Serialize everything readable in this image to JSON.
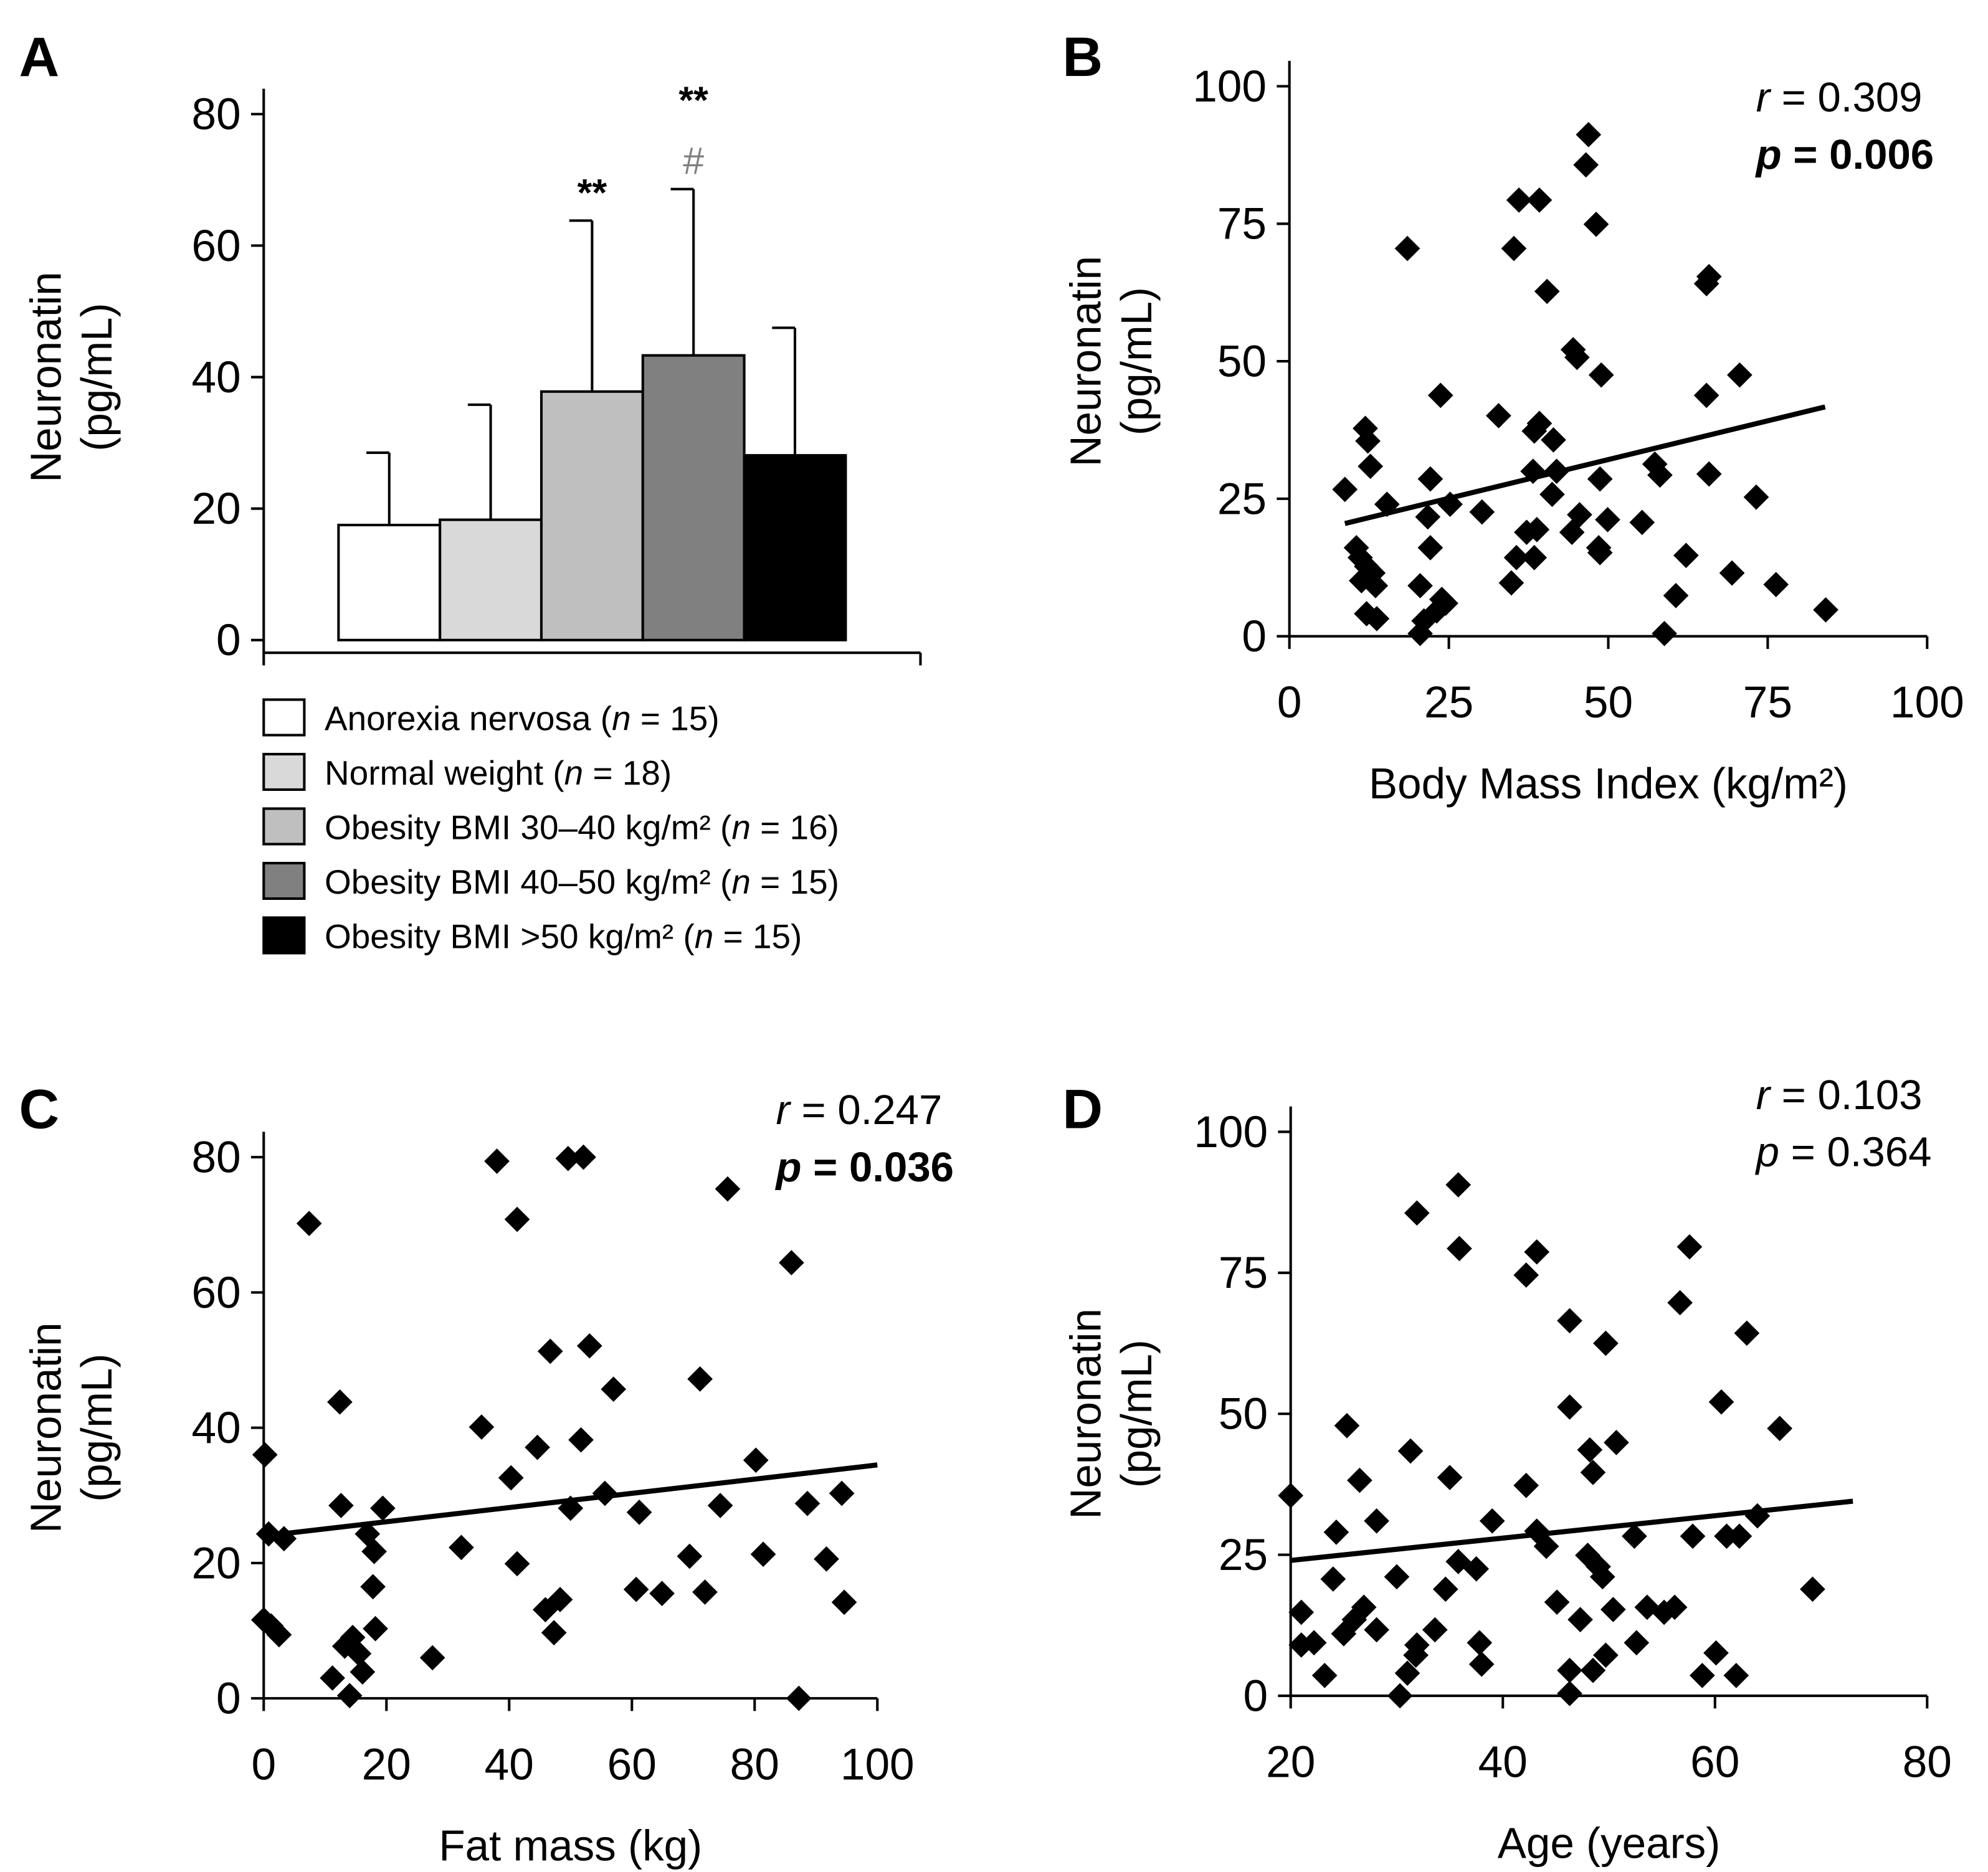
{
  "chart_data": [
    {
      "panel": "A",
      "type": "bar",
      "ylabel": [
        "Neuronatin",
        "(pg/mL)"
      ],
      "ylim": [
        0,
        80
      ],
      "yticks": [
        0,
        20,
        40,
        60,
        80
      ],
      "categories": [
        "Anorexia nervosa",
        "Normal weight",
        "Obesity BMI 30–40 kg/m²",
        "Obesity BMI 40–50 kg/m²",
        "Obesity BMI >50 kg/m²"
      ],
      "legend": [
        {
          "label": "Anorexia nervosa (",
          "n": "n",
          "rest": " = 15)"
        },
        {
          "label": "Normal weight (",
          "n": "n",
          "rest": " = 18)"
        },
        {
          "label": "Obesity BMI 30–40 kg/m² (",
          "n": "n",
          "rest": " = 16)"
        },
        {
          "label": "Obesity BMI 40–50 kg/m² (",
          "n": "n",
          "rest": " = 15)"
        },
        {
          "label": "Obesity BMI >50 kg/m² (",
          "n": "n",
          "rest": " = 15)"
        }
      ],
      "values": [
        17.5,
        18.3,
        37.8,
        43.3,
        28.1
      ],
      "error_upper": [
        28.5,
        35.8,
        63.8,
        68.6,
        47.5
      ],
      "colors": [
        "#ffffff",
        "#d9d9d9",
        "#bfbfbf",
        "#808080",
        "#000000"
      ],
      "annotations": [
        {
          "bar": 2,
          "lines": [
            {
              "text": "**",
              "color": "#000000"
            }
          ]
        },
        {
          "bar": 3,
          "lines": [
            {
              "text": "**",
              "color": "#000000"
            },
            {
              "text": "#",
              "color": "#7f7f7f"
            }
          ]
        }
      ]
    },
    {
      "panel": "B",
      "type": "scatter",
      "xlabel": "Body Mass Index (kg/m²)",
      "ylabel": [
        "Neuronatin",
        "(pg/mL)"
      ],
      "xlim": [
        0,
        100
      ],
      "ylim": [
        0,
        100
      ],
      "xticks": [
        0,
        25,
        50,
        75,
        100
      ],
      "yticks": [
        0,
        25,
        50,
        75,
        100
      ],
      "stats": {
        "r_label": "r",
        "r_value": " = 0.309",
        "p_label": "p",
        "p_value": " = 0.006",
        "p_bold": true
      },
      "trendline": [
        [
          8.7,
          20.5
        ],
        [
          84,
          41.7
        ]
      ],
      "points": [
        [
          8.7,
          26.7
        ],
        [
          11.9,
          37.8
        ],
        [
          12.3,
          35.5
        ],
        [
          12.7,
          30.9
        ],
        [
          10.5,
          16.1
        ],
        [
          11.1,
          14.3
        ],
        [
          12.1,
          12.7
        ],
        [
          13.1,
          11.5
        ],
        [
          11.3,
          10.1
        ],
        [
          13.5,
          9.2
        ],
        [
          12.1,
          4.1
        ],
        [
          13.7,
          3.2
        ],
        [
          15.3,
          24.0
        ],
        [
          18.5,
          70.5
        ],
        [
          20.5,
          9.2
        ],
        [
          21.1,
          2.8
        ],
        [
          20.5,
          0.5
        ],
        [
          21.7,
          21.7
        ],
        [
          22.1,
          28.6
        ],
        [
          22.1,
          16.1
        ],
        [
          23.1,
          4.6
        ],
        [
          23.9,
          6.7
        ],
        [
          24.5,
          6.0
        ],
        [
          23.7,
          43.8
        ],
        [
          25.2,
          24.0
        ],
        [
          30.2,
          22.6
        ],
        [
          32.8,
          40.1
        ],
        [
          35.2,
          70.5
        ],
        [
          36.0,
          79.3
        ],
        [
          39.2,
          79.3
        ],
        [
          38.2,
          30.0
        ],
        [
          39.2,
          38.7
        ],
        [
          38.4,
          37.3
        ],
        [
          38.8,
          19.4
        ],
        [
          38.4,
          14.3
        ],
        [
          40.4,
          62.7
        ],
        [
          41.2,
          25.8
        ],
        [
          41.4,
          35.7
        ],
        [
          41.9,
          30.0
        ],
        [
          44.3,
          18.9
        ],
        [
          44.5,
          52.1
        ],
        [
          45.1,
          50.7
        ],
        [
          45.5,
          22.1
        ],
        [
          46.5,
          85.7
        ],
        [
          46.9,
          91.2
        ],
        [
          48.1,
          74.9
        ],
        [
          48.5,
          16.1
        ],
        [
          48.7,
          15.2
        ],
        [
          48.9,
          47.5
        ],
        [
          48.7,
          28.6
        ],
        [
          49.9,
          21.2
        ],
        [
          55.3,
          20.7
        ],
        [
          57.3,
          31.3
        ],
        [
          58.1,
          29.3
        ],
        [
          58.8,
          0.5
        ],
        [
          60.6,
          7.4
        ],
        [
          62.2,
          14.7
        ],
        [
          65.4,
          64.1
        ],
        [
          65.8,
          65.4
        ],
        [
          65.4,
          43.8
        ],
        [
          65.8,
          29.5
        ],
        [
          69.4,
          11.5
        ],
        [
          70.6,
          47.5
        ],
        [
          73.2,
          25.3
        ],
        [
          76.3,
          9.4
        ],
        [
          84.1,
          4.8
        ],
        [
          34.8,
          9.7
        ],
        [
          35.6,
          14.3
        ],
        [
          37.2,
          18.9
        ]
      ]
    },
    {
      "panel": "C",
      "type": "scatter",
      "xlabel": "Fat mass (kg)",
      "ylabel": [
        "Neuronatin",
        "(pg/mL)"
      ],
      "xlim": [
        0,
        100
      ],
      "ylim": [
        0,
        80
      ],
      "xticks": [
        0,
        20,
        40,
        60,
        80,
        100
      ],
      "yticks": [
        0,
        20,
        40,
        60,
        80
      ],
      "stats": {
        "r_label": "r",
        "r_value": " = 0.247",
        "p_label": "p",
        "p_value": " = 0.036",
        "p_bold": true
      },
      "trendline": [
        [
          0,
          24
        ],
        [
          100,
          34.5
        ]
      ],
      "points": [
        [
          0.2,
          36
        ],
        [
          0.8,
          24.3
        ],
        [
          0,
          11.6
        ],
        [
          1.2,
          10.7
        ],
        [
          2.5,
          9.4
        ],
        [
          3.3,
          23.6
        ],
        [
          7.4,
          70.2
        ],
        [
          11.2,
          3.0
        ],
        [
          12.4,
          43.8
        ],
        [
          12.6,
          28.5
        ],
        [
          13.2,
          7.7
        ],
        [
          14.5,
          9.0
        ],
        [
          14.0,
          0.4
        ],
        [
          15.5,
          6.6
        ],
        [
          16.1,
          3.9
        ],
        [
          16.9,
          24.3
        ],
        [
          18.0,
          21.7
        ],
        [
          17.8,
          16.5
        ],
        [
          18.2,
          10.3
        ],
        [
          19.4,
          28.1
        ],
        [
          27.5,
          6.0
        ],
        [
          32.2,
          22.3
        ],
        [
          35.5,
          40.1
        ],
        [
          38.0,
          79.4
        ],
        [
          40.3,
          32.6
        ],
        [
          41.3,
          70.8
        ],
        [
          41.3,
          19.9
        ],
        [
          44.6,
          37.1
        ],
        [
          45.9,
          13.1
        ],
        [
          46.7,
          51.3
        ],
        [
          47.3,
          9.7
        ],
        [
          48.3,
          14.6
        ],
        [
          50.0,
          28.1
        ],
        [
          49.6,
          79.8
        ],
        [
          52.1,
          80.0
        ],
        [
          51.7,
          38.2
        ],
        [
          53.1,
          52.1
        ],
        [
          55.6,
          30.3
        ],
        [
          57.0,
          45.7
        ],
        [
          60.7,
          16.1
        ],
        [
          61.2,
          27.5
        ],
        [
          64.9,
          15.5
        ],
        [
          69.4,
          21.0
        ],
        [
          71.1,
          47.2
        ],
        [
          71.9,
          15.7
        ],
        [
          74.4,
          28.5
        ],
        [
          75.6,
          75.3
        ],
        [
          80.2,
          35.2
        ],
        [
          81.4,
          21.3
        ],
        [
          86.0,
          64.4
        ],
        [
          87.2,
          0
        ],
        [
          88.6,
          28.8
        ],
        [
          91.7,
          20.6
        ],
        [
          94.2,
          30.3
        ],
        [
          94.6,
          14.2
        ]
      ]
    },
    {
      "panel": "D",
      "type": "scatter",
      "xlabel": "Age (years)",
      "ylabel": [
        "Neuronatin",
        "(pg/mL)"
      ],
      "xlim": [
        20,
        80
      ],
      "ylim": [
        0,
        100
      ],
      "xticks": [
        20,
        40,
        60,
        80
      ],
      "yticks": [
        0,
        25,
        50,
        75,
        100
      ],
      "stats": {
        "r_label": "r",
        "r_value": " = 0.103",
        "p_label": "p",
        "p_value": " = 0.364",
        "p_bold": false
      },
      "trendline": [
        [
          20,
          24
        ],
        [
          73,
          34.5
        ]
      ],
      "points": [
        [
          20.0,
          35.5
        ],
        [
          21.0,
          14.8
        ],
        [
          21.0,
          9.0
        ],
        [
          22.2,
          9.4
        ],
        [
          23.2,
          3.6
        ],
        [
          24.0,
          20.7
        ],
        [
          24.3,
          29.0
        ],
        [
          25.3,
          47.9
        ],
        [
          25.0,
          11.0
        ],
        [
          26.0,
          13.5
        ],
        [
          26.5,
          38.2
        ],
        [
          26.9,
          15.7
        ],
        [
          28.1,
          31.0
        ],
        [
          28.1,
          11.7
        ],
        [
          30.0,
          21.1
        ],
        [
          30.3,
          0
        ],
        [
          31.0,
          4.0
        ],
        [
          31.3,
          43.4
        ],
        [
          31.8,
          7.2
        ],
        [
          31.9,
          85.6
        ],
        [
          31.9,
          9.0
        ],
        [
          33.6,
          11.7
        ],
        [
          34.6,
          18.9
        ],
        [
          35.0,
          38.7
        ],
        [
          35.8,
          90.6
        ],
        [
          35.9,
          79.3
        ],
        [
          35.8,
          23.8
        ],
        [
          37.5,
          22.5
        ],
        [
          37.8,
          9.4
        ],
        [
          38.0,
          5.6
        ],
        [
          39.0,
          31.0
        ],
        [
          42.2,
          37.3
        ],
        [
          42.2,
          74.6
        ],
        [
          43.2,
          78.7
        ],
        [
          43.2,
          29.2
        ],
        [
          44.1,
          26.5
        ],
        [
          45.1,
          16.6
        ],
        [
          46.3,
          4.5
        ],
        [
          46.3,
          0.4
        ],
        [
          46.3,
          66.5
        ],
        [
          46.3,
          51.2
        ],
        [
          47.3,
          13.5
        ],
        [
          48.0,
          24.9
        ],
        [
          48.2,
          43.6
        ],
        [
          48.5,
          39.6
        ],
        [
          48.5,
          4.5
        ],
        [
          49.0,
          22.9
        ],
        [
          49.4,
          21.1
        ],
        [
          49.7,
          7.2
        ],
        [
          49.7,
          62.5
        ],
        [
          50.4,
          15.3
        ],
        [
          50.7,
          44.9
        ],
        [
          52.4,
          28.3
        ],
        [
          52.6,
          9.4
        ],
        [
          53.6,
          15.7
        ],
        [
          55.2,
          14.8
        ],
        [
          56.2,
          15.7
        ],
        [
          56.7,
          69.7
        ],
        [
          57.6,
          79.6
        ],
        [
          57.9,
          28.3
        ],
        [
          58.8,
          3.6
        ],
        [
          60.1,
          7.6
        ],
        [
          60.6,
          52.1
        ],
        [
          61.1,
          28.3
        ],
        [
          62.0,
          3.6
        ],
        [
          62.3,
          28.3
        ],
        [
          63.0,
          64.3
        ],
        [
          64.0,
          31.9
        ],
        [
          66.1,
          47.4
        ],
        [
          69.2,
          18.9
        ]
      ]
    }
  ]
}
